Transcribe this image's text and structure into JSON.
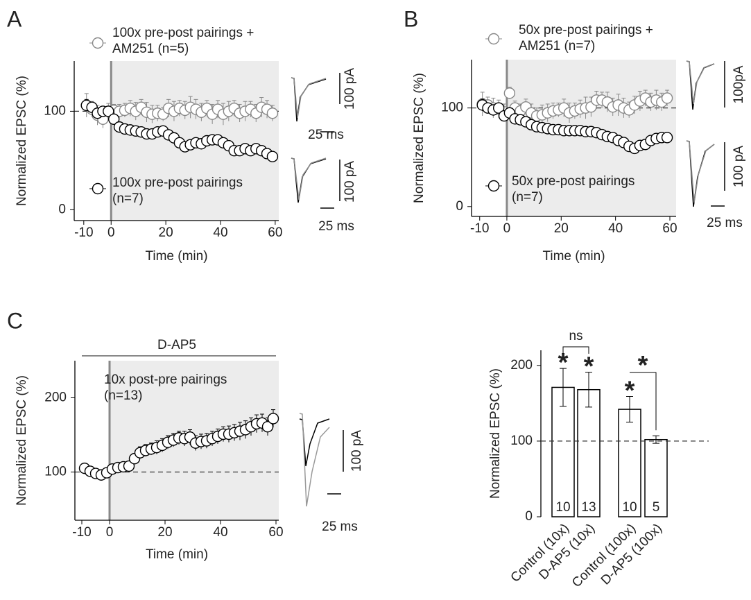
{
  "chart_data": [
    {
      "type": "scatter",
      "panel": "A",
      "xlabel": "Time (min)",
      "ylabel": "Normalized EPSC (%)",
      "xlim": [
        -13.5,
        61.3
      ],
      "ylim": [
        -11,
        151
      ],
      "xticks": [
        -10,
        0,
        20,
        40,
        60
      ],
      "yticks": [
        0,
        100
      ],
      "shaded_region": [
        0,
        60
      ],
      "reference_line": 100,
      "x": [
        -9,
        -7,
        -5,
        -3,
        -1,
        1,
        3,
        5,
        7,
        9,
        11,
        13,
        15,
        17,
        19,
        21,
        23,
        25,
        27,
        29,
        31,
        33,
        35,
        37,
        39,
        41,
        43,
        45,
        47,
        49,
        51,
        53,
        55,
        57,
        59
      ],
      "series": [
        {
          "name": "100x pre-post pairings + AM251 (n=5)",
          "color": "#888888",
          "values": [
            106,
            102,
            96,
            92,
            100,
            101,
            100,
            101,
            103,
            100,
            104,
            99,
            97,
            98,
            97,
            103,
            100,
            103,
            101,
            104,
            102,
            99,
            103,
            97,
            102,
            97,
            100,
            103,
            98,
            100,
            102,
            98,
            104,
            102,
            98
          ],
          "errors": [
            12,
            8,
            10,
            9,
            8,
            6,
            7,
            7,
            8,
            9,
            8,
            10,
            9,
            8,
            7,
            9,
            10,
            8,
            9,
            11,
            10,
            9,
            8,
            10,
            9,
            11,
            10,
            8,
            9,
            10,
            8,
            9,
            10,
            9,
            8
          ]
        },
        {
          "name": "100x pre-post pairings (n=7)",
          "color": "#000000",
          "values": [
            106,
            104,
            98,
            100,
            100,
            92,
            84,
            82,
            81,
            80,
            79,
            77,
            77,
            79,
            80,
            76,
            73,
            68,
            64,
            66,
            68,
            67,
            70,
            71,
            71,
            68,
            65,
            60,
            60,
            62,
            60,
            62,
            60,
            57,
            54
          ],
          "errors": [
            6,
            5,
            5,
            5,
            4,
            4,
            4,
            4,
            4,
            4,
            4,
            4,
            4,
            4,
            5,
            5,
            5,
            5,
            5,
            5,
            5,
            5,
            5,
            5,
            5,
            5,
            5,
            5,
            5,
            5,
            5,
            5,
            5,
            5,
            5
          ]
        }
      ],
      "annotations": [
        "100 pA",
        "25 ms",
        "100 pA",
        "25 ms"
      ]
    },
    {
      "type": "scatter",
      "panel": "B",
      "xlabel": "Time (min)",
      "ylabel": "Normalized EPSC (%)",
      "xlim": [
        -13,
        62.3
      ],
      "ylim": [
        -10,
        149
      ],
      "xticks": [
        -10,
        0,
        20,
        40,
        60
      ],
      "yticks": [
        0,
        100
      ],
      "shaded_region": [
        0,
        60
      ],
      "reference_line": 100,
      "x": [
        -9,
        -7,
        -5,
        -3,
        -1,
        1,
        3,
        5,
        7,
        9,
        11,
        13,
        15,
        17,
        19,
        21,
        23,
        25,
        27,
        29,
        31,
        33,
        35,
        37,
        39,
        41,
        43,
        45,
        47,
        49,
        51,
        53,
        55,
        57,
        59
      ],
      "series": [
        {
          "name": "50x pre-post pairings + AM251 (n=7)",
          "color": "#888888",
          "values": [
            104,
            103,
            100,
            99,
            96,
            115,
            100,
            97,
            101,
            95,
            92,
            93,
            95,
            97,
            98,
            100,
            95,
            97,
            99,
            100,
            101,
            108,
            108,
            106,
            101,
            103,
            100,
            98,
            103,
            107,
            110,
            106,
            108,
            106,
            110
          ],
          "errors": [
            12,
            8,
            10,
            9,
            8,
            6,
            7,
            7,
            8,
            9,
            8,
            10,
            9,
            8,
            7,
            9,
            10,
            8,
            9,
            11,
            10,
            9,
            8,
            10,
            9,
            11,
            10,
            8,
            9,
            10,
            8,
            9,
            10,
            9,
            8
          ]
        },
        {
          "name": "50x pre-post pairings (n=7)",
          "color": "#000000",
          "values": [
            103,
            100,
            98,
            100,
            92,
            95,
            89,
            88,
            86,
            83,
            81,
            80,
            79,
            78,
            78,
            77,
            77,
            77,
            77,
            76,
            76,
            75,
            73,
            71,
            70,
            67,
            65,
            61,
            59,
            62,
            63,
            67,
            69,
            70,
            70
          ],
          "errors": [
            6,
            5,
            5,
            5,
            4,
            4,
            4,
            4,
            4,
            4,
            4,
            4,
            4,
            4,
            5,
            5,
            5,
            5,
            5,
            5,
            5,
            5,
            5,
            5,
            5,
            5,
            5,
            5,
            5,
            5,
            5,
            5,
            5,
            5,
            5
          ]
        }
      ],
      "annotations": [
        "100pA",
        "100 pA",
        "25 ms"
      ]
    },
    {
      "type": "scatter",
      "panel": "C",
      "xlabel": "Time (min)",
      "ylabel": "Normalized EPSC (%)",
      "xlim": [
        -12.5,
        61
      ],
      "ylim": [
        35,
        250
      ],
      "xticks": [
        -10,
        0,
        20,
        40,
        60
      ],
      "yticks": [
        100,
        200
      ],
      "shaded_region": [
        0,
        60
      ],
      "reference_line": 100,
      "condition": "D-AP5",
      "x": [
        -9,
        -7,
        -5,
        -3,
        -1,
        1,
        3,
        5,
        7,
        9,
        11,
        13,
        15,
        17,
        19,
        21,
        23,
        25,
        27,
        29,
        31,
        33,
        35,
        37,
        39,
        41,
        43,
        45,
        47,
        49,
        51,
        53,
        55,
        57,
        59
      ],
      "series": [
        {
          "name": "10x post-pre pairings (n=13)",
          "color": "#000000",
          "values": [
            105,
            101,
            98,
            96,
            99,
            104,
            106,
            107,
            108,
            118,
            126,
            129,
            131,
            133,
            136,
            140,
            143,
            146,
            145,
            147,
            139,
            141,
            142,
            145,
            148,
            151,
            151,
            153,
            155,
            157,
            161,
            165,
            166,
            161,
            172
          ],
          "errors": [
            6,
            5,
            5,
            6,
            6,
            5,
            6,
            6,
            6,
            7,
            8,
            8,
            8,
            9,
            9,
            9,
            9,
            9,
            10,
            10,
            10,
            10,
            10,
            10,
            10,
            10,
            11,
            11,
            12,
            12,
            12,
            12,
            12,
            12,
            12
          ]
        }
      ],
      "annotations": [
        "100 pA",
        "25 ms"
      ]
    },
    {
      "type": "bar",
      "ylabel": "Normalized EPSC (%)",
      "categories": [
        "Control (10x)",
        "D-AP5 (10x)",
        "Control (100x)",
        "D-AP5 (100x)"
      ],
      "values": [
        171,
        168,
        142,
        102
      ],
      "errors": [
        25,
        23,
        17,
        5
      ],
      "counts": [
        10,
        13,
        10,
        5
      ],
      "bar_annotations": [
        "*",
        "*",
        "*",
        null
      ],
      "comparisons": [
        {
          "bars": [
            0,
            1
          ],
          "label": "ns"
        },
        {
          "bars": [
            2,
            3
          ],
          "label": "*"
        }
      ],
      "ylim": [
        0,
        220
      ],
      "yticks": [
        0,
        100,
        200
      ],
      "reference_line": 100,
      "color": "#ffffff"
    }
  ]
}
